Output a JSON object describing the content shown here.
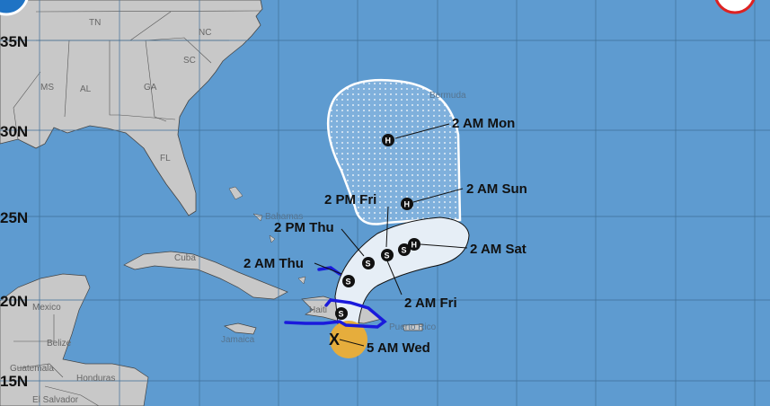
{
  "colors": {
    "ocean": "#5e9bd0",
    "land": "#c8c8c8",
    "cone_track": "#e6eef6",
    "warning": "#1a1adc",
    "tropical_storm_wind": "#e6ad3c",
    "grid": "#3f6f99"
  },
  "latitude_labels": [
    "35N",
    "30N",
    "25N",
    "20N",
    "15N"
  ],
  "states": [
    "TN",
    "NC",
    "SC",
    "MS",
    "AL",
    "GA",
    "FL"
  ],
  "places": {
    "bermuda": "Bermuda",
    "bahamas": "Bahamas",
    "cuba": "Cuba",
    "jamaica": "Jamaica",
    "haiti": "Haiti",
    "puerto_rico": "Puerto Rico",
    "mexico": "Mexico",
    "belize": "Belize",
    "guatemala": "Guatemala",
    "honduras": "Honduras",
    "el_salvador": "El Salvador"
  },
  "track": [
    {
      "label": "5 AM Wed",
      "symbol": "X",
      "icon": "current-position-x"
    },
    {
      "label": "",
      "symbol": "S",
      "icon": "tropical-storm"
    },
    {
      "label": "2 AM Thu",
      "symbol": "S",
      "icon": "tropical-storm"
    },
    {
      "label": "2 PM Thu",
      "symbol": "S",
      "icon": "tropical-storm"
    },
    {
      "label": "2 AM Fri",
      "symbol": "S",
      "icon": "tropical-storm"
    },
    {
      "label": "2 PM Fri",
      "symbol": "S",
      "icon": "tropical-storm"
    },
    {
      "label": "2 AM Sat",
      "symbol": "H",
      "icon": "hurricane"
    },
    {
      "label": "2 AM Sun",
      "symbol": "H",
      "icon": "hurricane"
    },
    {
      "label": "2 AM Mon",
      "symbol": "H",
      "icon": "hurricane"
    }
  ]
}
